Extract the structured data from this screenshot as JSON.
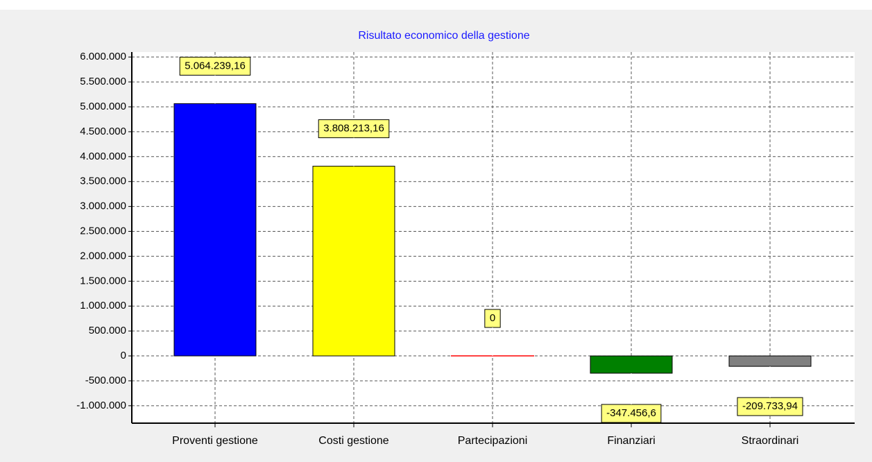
{
  "chart_data": {
    "type": "bar",
    "title": "Risultato economico della gestione",
    "categories": [
      "Proventi gestione",
      "Costi gestione",
      "Partecipazioni",
      "Finanziari",
      "Straordinari"
    ],
    "values": [
      5064239.16,
      3808213.16,
      0,
      -347456.6,
      -209733.94
    ],
    "value_labels": [
      "5.064.239,16",
      "3.808.213,16",
      "0",
      "-347.456,6",
      "-209.733,94"
    ],
    "colors": [
      "#0000ff",
      "#ffff00",
      "#ff0000",
      "#008000",
      "#808080"
    ],
    "ylim": [
      -1350000,
      6100000
    ],
    "yticks": [
      {
        "value": -1000000,
        "label": "-1.000.000"
      },
      {
        "value": -500000,
        "label": "-500.000"
      },
      0,
      {
        "value": 500000,
        "label": "500.000"
      },
      {
        "value": 1000000,
        "label": "1.000.000"
      },
      {
        "value": 1500000,
        "label": "1.500.000"
      },
      {
        "value": 2000000,
        "label": "2.000.000"
      },
      {
        "value": 2500000,
        "label": "2.500.000"
      },
      {
        "value": 3000000,
        "label": "3.000.000"
      },
      {
        "value": 3500000,
        "label": "3.500.000"
      },
      {
        "value": 4000000,
        "label": "4.000.000"
      },
      {
        "value": 4500000,
        "label": "4.500.000"
      },
      {
        "value": 5000000,
        "label": "5.000.000"
      },
      {
        "value": 5500000,
        "label": "5.500.000"
      },
      {
        "value": 6000000,
        "label": "6.000.000"
      }
    ],
    "grid": true
  }
}
